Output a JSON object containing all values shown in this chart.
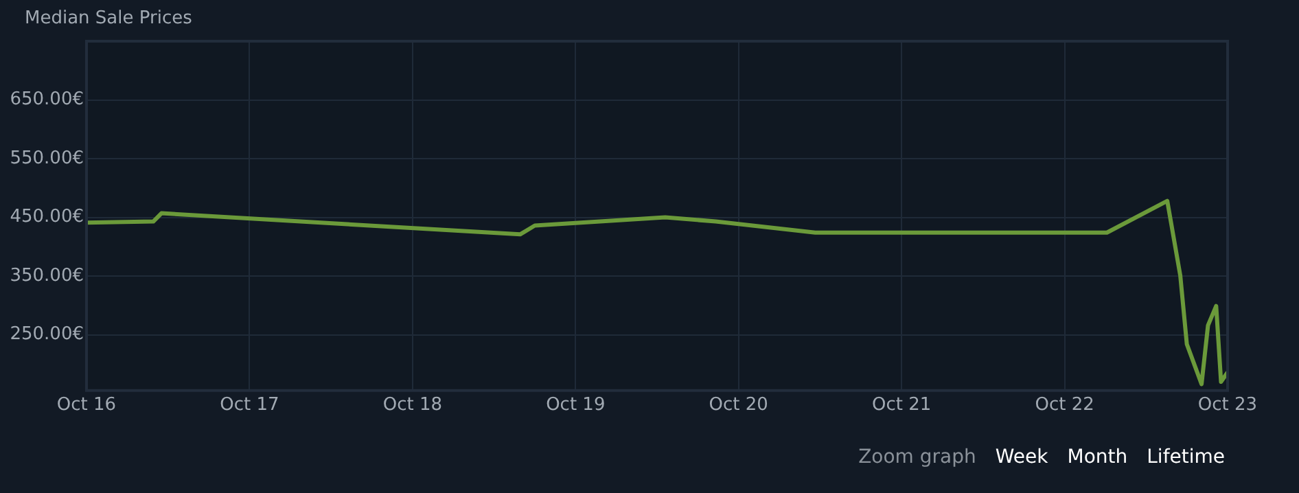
{
  "chart_data": {
    "type": "line",
    "title": "Median Sale Prices",
    "x": [
      "--10-16T00:00",
      "--10-16T09:50",
      "--10-16T11:02",
      "--10-18T15:50",
      "--10-18T18:00",
      "--10-19T13:12",
      "--10-19T20:38",
      "--10-20T11:17",
      "--10-22T06:14",
      "--10-22T15:07",
      "--10-22T17:02",
      "--10-22T18:00",
      "--10-22T20:10",
      "--10-22T21:07",
      "--10-22T22:19",
      "--10-22T23:02",
      "--10-23T00:00"
    ],
    "series": [
      {
        "color": "#6b9a3a",
        "values": [
          441,
          443,
          457,
          421,
          436,
          450,
          443,
          424,
          424,
          478,
          351,
          234,
          166,
          266,
          299,
          170,
          186
        ]
      }
    ],
    "xlim": [
      "--10-16",
      "--10-23"
    ],
    "xticks": [
      {
        "value": "--10-16",
        "label": "Oct 16"
      },
      {
        "value": "--10-17",
        "label": "Oct 17"
      },
      {
        "value": "--10-18",
        "label": "Oct 18"
      },
      {
        "value": "--10-19",
        "label": "Oct 19"
      },
      {
        "value": "--10-20",
        "label": "Oct 20"
      },
      {
        "value": "--10-21",
        "label": "Oct 21"
      },
      {
        "value": "--10-22",
        "label": "Oct 22"
      },
      {
        "value": "--10-23",
        "label": "Oct 23"
      }
    ],
    "ylim": [
      155,
      750
    ],
    "yticks": [
      {
        "value": 250,
        "label": "250.00€"
      },
      {
        "value": 350,
        "label": "350.00€"
      },
      {
        "value": 450,
        "label": "450.00€"
      },
      {
        "value": 550,
        "label": "550.00€"
      },
      {
        "value": 650,
        "label": "650.00€"
      }
    ],
    "grid": true,
    "legend": false,
    "marker": "none",
    "line_style": "solid",
    "annotations": [
      "Zoom graph",
      "Week",
      "Month",
      "Lifetime"
    ]
  }
}
